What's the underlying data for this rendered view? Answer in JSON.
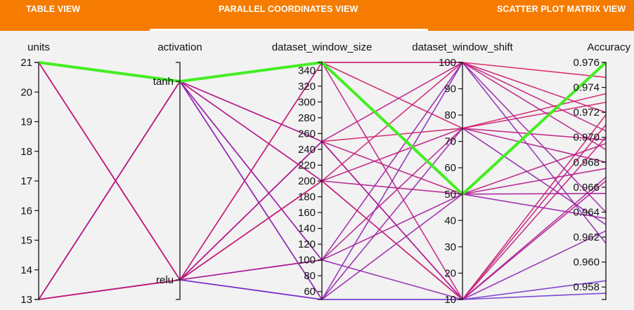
{
  "tabs": [
    {
      "label": "TABLE VIEW",
      "active": false
    },
    {
      "label": "PARALLEL COORDINATES VIEW",
      "active": true
    },
    {
      "label": "SCATTER PLOT MATRIX VIEW",
      "active": false
    }
  ],
  "colors": {
    "topbar": "#f57c00",
    "highlight": "#44ee22",
    "low": "#6a3ad8",
    "mid": "#a81a9a",
    "high": "#e0205a"
  },
  "chart_data": {
    "type": "parallel_coordinates",
    "axes": [
      {
        "name": "units",
        "kind": "numeric",
        "range": [
          13,
          21
        ],
        "ticks": [
          13,
          14,
          15,
          16,
          17,
          18,
          19,
          20,
          21
        ]
      },
      {
        "name": "activation",
        "kind": "categorical",
        "categories": [
          "tanh",
          "relu"
        ]
      },
      {
        "name": "dataset_window_size",
        "kind": "numeric",
        "range": [
          50,
          350
        ],
        "ticks": [
          60,
          80,
          100,
          120,
          140,
          160,
          180,
          200,
          220,
          240,
          260,
          280,
          300,
          320,
          340
        ]
      },
      {
        "name": "dataset_window_shift",
        "kind": "numeric",
        "range": [
          10,
          100
        ],
        "ticks": [
          10,
          20,
          30,
          40,
          50,
          60,
          70,
          80,
          90,
          100
        ]
      },
      {
        "name": "Accuracy",
        "kind": "numeric",
        "range": [
          0.957,
          0.976
        ],
        "ticks": [
          "0.958",
          "0.960",
          "0.962",
          "0.964",
          "0.966",
          "0.968",
          "0.970",
          "0.972",
          "0.974",
          "0.976"
        ]
      }
    ],
    "lines": [
      {
        "units": 21,
        "activation": "tanh",
        "dataset_window_size": 350,
        "dataset_window_shift": 50,
        "Accuracy": 0.976,
        "highlight": true
      },
      {
        "units": 21,
        "activation": "tanh",
        "dataset_window_size": 350,
        "dataset_window_shift": 100,
        "Accuracy": 0.9748
      },
      {
        "units": 21,
        "activation": "tanh",
        "dataset_window_size": 250,
        "dataset_window_shift": 75,
        "Accuracy": 0.9735
      },
      {
        "units": 21,
        "activation": "tanh",
        "dataset_window_size": 200,
        "dataset_window_shift": 10,
        "Accuracy": 0.971
      },
      {
        "units": 21,
        "activation": "tanh",
        "dataset_window_size": 100,
        "dataset_window_shift": 10,
        "Accuracy": 0.9625
      },
      {
        "units": 21,
        "activation": "tanh",
        "dataset_window_size": 50,
        "dataset_window_shift": 10,
        "Accuracy": 0.9575
      },
      {
        "units": 21,
        "activation": "relu",
        "dataset_window_size": 250,
        "dataset_window_shift": 50,
        "Accuracy": 0.9695
      },
      {
        "units": 21,
        "activation": "relu",
        "dataset_window_size": 350,
        "dataset_window_shift": 75,
        "Accuracy": 0.9728
      },
      {
        "units": 21,
        "activation": "relu",
        "dataset_window_size": 100,
        "dataset_window_shift": 75,
        "Accuracy": 0.968
      },
      {
        "units": 21,
        "activation": "relu",
        "dataset_window_size": 50,
        "dataset_window_shift": 100,
        "Accuracy": 0.9615
      },
      {
        "units": 21,
        "activation": "relu",
        "dataset_window_size": 200,
        "dataset_window_shift": 100,
        "Accuracy": 0.972
      },
      {
        "units": 13,
        "activation": "tanh",
        "dataset_window_size": 200,
        "dataset_window_shift": 50,
        "Accuracy": 0.9675
      },
      {
        "units": 13,
        "activation": "tanh",
        "dataset_window_size": 250,
        "dataset_window_shift": 10,
        "Accuracy": 0.9668
      },
      {
        "units": 13,
        "activation": "tanh",
        "dataset_window_size": 100,
        "dataset_window_shift": 100,
        "Accuracy": 0.964
      },
      {
        "units": 13,
        "activation": "tanh",
        "dataset_window_size": 50,
        "dataset_window_shift": 75,
        "Accuracy": 0.963
      },
      {
        "units": 13,
        "activation": "tanh",
        "dataset_window_size": 350,
        "dataset_window_shift": 10,
        "Accuracy": 0.97
      },
      {
        "units": 13,
        "activation": "relu",
        "dataset_window_size": 350,
        "dataset_window_shift": 100,
        "Accuracy": 0.9705
      },
      {
        "units": 13,
        "activation": "relu",
        "dataset_window_size": 250,
        "dataset_window_shift": 100,
        "Accuracy": 0.969
      },
      {
        "units": 13,
        "activation": "relu",
        "dataset_window_size": 200,
        "dataset_window_shift": 75,
        "Accuracy": 0.9698
      },
      {
        "units": 13,
        "activation": "relu",
        "dataset_window_size": 100,
        "dataset_window_shift": 50,
        "Accuracy": 0.9655
      },
      {
        "units": 13,
        "activation": "relu",
        "dataset_window_size": 50,
        "dataset_window_shift": 50,
        "Accuracy": 0.9635
      },
      {
        "units": 13,
        "activation": "relu",
        "dataset_window_size": 50,
        "dataset_window_shift": 10,
        "Accuracy": 0.9585
      },
      {
        "units": 13,
        "activation": "relu",
        "dataset_window_size": 250,
        "dataset_window_shift": 10,
        "Accuracy": 0.9665
      },
      {
        "units": 13,
        "activation": "relu",
        "dataset_window_size": 200,
        "dataset_window_shift": 10,
        "Accuracy": 0.9718
      }
    ]
  }
}
